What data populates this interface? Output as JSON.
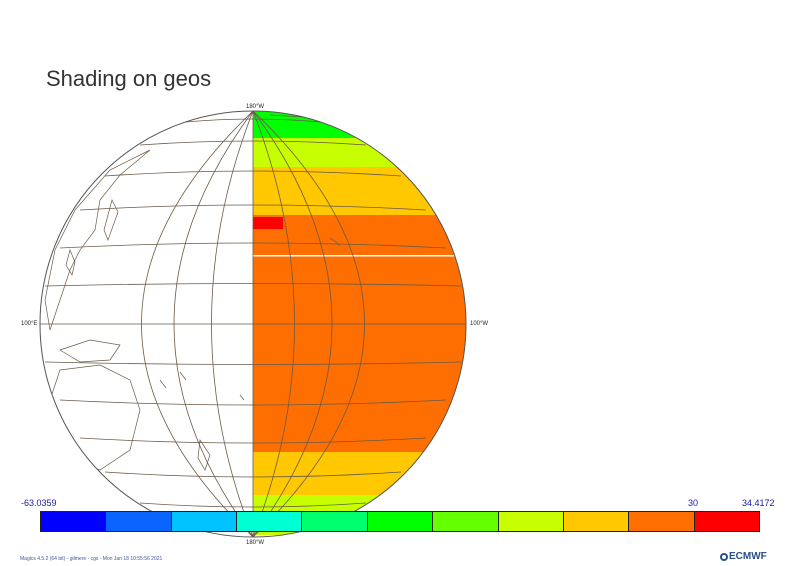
{
  "title": "Shading on geos",
  "grid_labels": {
    "top": "180°W",
    "bottom": "180°W",
    "left": "100°E",
    "right": "100°W"
  },
  "colorbar": {
    "min_label": "-63.0359",
    "mid_label": "30",
    "max_label": "34.4172",
    "colors": [
      "#0000ff",
      "#0a64ff",
      "#00c3ff",
      "#00ffd2",
      "#00ff6e",
      "#00ff00",
      "#64ff00",
      "#c8ff00",
      "#ffc800",
      "#ff6e00",
      "#ff0000"
    ],
    "legend_extra_color": "#ff0000"
  },
  "shading_colors": {
    "green": "#00ff00",
    "yellow_green": "#c8ff00",
    "orange_yellow": "#ffc800",
    "orange": "#ff6e00",
    "red": "#ff0000"
  },
  "footer": "Magics 4.5.2 (64 bit) - gilmere - cgs - Mon Jan 18 10:55:56 2021",
  "logo_text": "ECMWF"
}
